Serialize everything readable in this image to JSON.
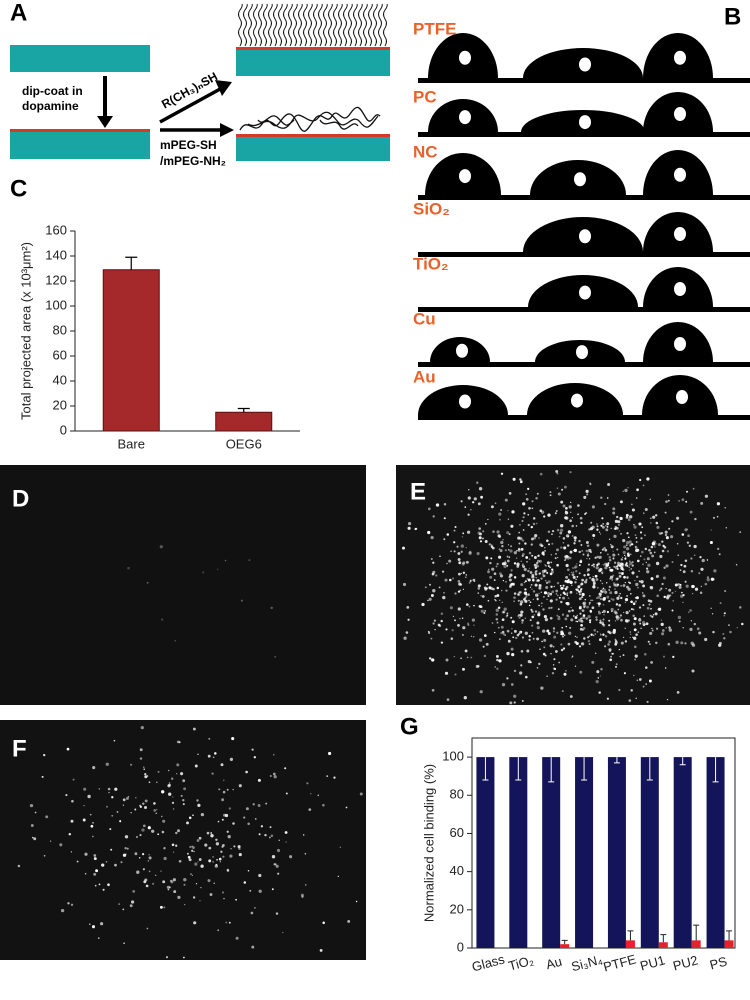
{
  "panel_labels": [
    "A",
    "B",
    "C",
    "D",
    "E",
    "F",
    "G"
  ],
  "scheme": {
    "dip_coat": [
      "dip-coat in",
      "dopamine"
    ],
    "alkanethiol": "R(CH₃)ₙSH",
    "peg": [
      "mPEG-SH",
      "/mPEG-NH₂"
    ]
  },
  "contact_angle": {
    "materials": [
      "PTFE",
      "PC",
      "NC",
      "SiO₂",
      "TiO₂",
      "Cu",
      "Au"
    ]
  },
  "chart_data": [
    {
      "type": "bar",
      "ylabel": "Total projected area (x 10³μm²)",
      "categories": [
        "Bare",
        "OEG6"
      ],
      "values": [
        129,
        15
      ],
      "errors": [
        10,
        3
      ],
      "color": "#a5292a",
      "ylim": [
        0,
        160
      ],
      "yticks": [
        0,
        20,
        40,
        60,
        80,
        100,
        120,
        140,
        160
      ]
    },
    {
      "type": "grouped_bar",
      "ylabel": "Normalized cell binding (%)",
      "categories": [
        "Glass",
        "TiO₂",
        "Au",
        "Si₃N₄",
        "PTFE",
        "PU1",
        "PU2",
        "PS"
      ],
      "series": [
        {
          "color": "#14145a",
          "values": [
            100,
            100,
            100,
            100,
            100,
            100,
            100,
            100
          ],
          "errors": [
            12,
            12,
            13,
            12,
            3,
            12,
            4,
            13
          ]
        },
        {
          "color": "#e8202a",
          "values": [
            0,
            0,
            2,
            0,
            4,
            3,
            4,
            4
          ],
          "errors": [
            0,
            0,
            2,
            0,
            5,
            4,
            8,
            5
          ]
        }
      ],
      "ylim": [
        0,
        110
      ],
      "yticks": [
        0,
        20,
        40,
        60,
        80,
        100
      ]
    }
  ]
}
